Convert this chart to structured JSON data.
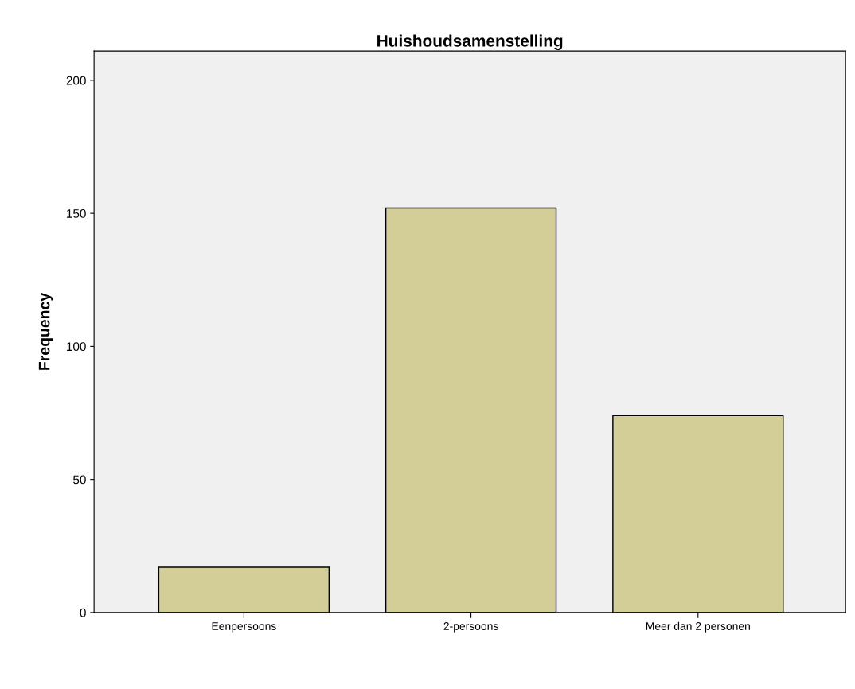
{
  "chart_data": {
    "type": "bar",
    "title": "Huishoudsamenstelling",
    "ylabel": "Frequency",
    "categories": [
      "Eenpersoons",
      "2-persoons",
      "Meer dan 2 personen"
    ],
    "values": [
      17,
      152,
      74
    ],
    "color": "#d3ce97",
    "ylim": [
      0,
      211
    ],
    "yticks": [
      0,
      50,
      100,
      150,
      200
    ],
    "grid": false,
    "legend": false
  }
}
